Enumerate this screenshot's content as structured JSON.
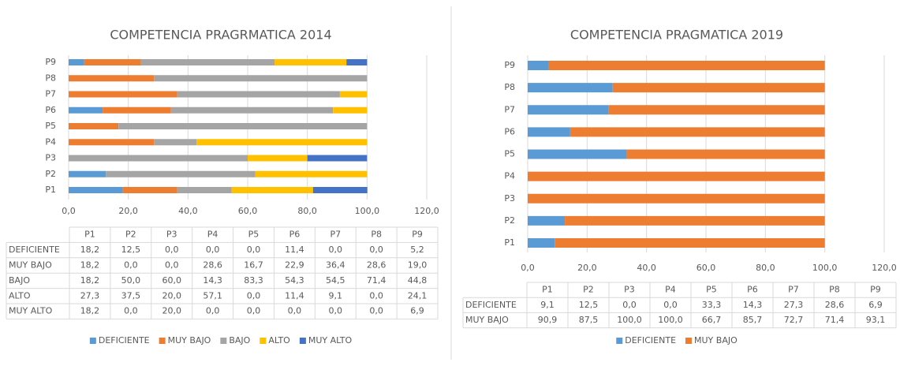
{
  "chart_data": [
    {
      "type": "bar",
      "orientation": "horizontal",
      "stacked": true,
      "title": "COMPETENCIA PRAGRMATICA 2014",
      "categories": [
        "P1",
        "P2",
        "P3",
        "P4",
        "P5",
        "P6",
        "P7",
        "P8",
        "P9"
      ],
      "xlim": [
        0,
        120
      ],
      "xticks": [
        {
          "value": 0,
          "label": "0,0"
        },
        {
          "value": 20,
          "label": "20,0"
        },
        {
          "value": 40,
          "label": "40,0"
        },
        {
          "value": 60,
          "label": "60,0"
        },
        {
          "value": 80,
          "label": "80,0"
        },
        {
          "value": 100,
          "label": "100,0"
        },
        {
          "value": 120,
          "label": "120,0"
        }
      ],
      "grid": true,
      "legend": "bottom",
      "data_table": true,
      "series": [
        {
          "name": "DEFICIENTE",
          "color": "#5b9bd5",
          "values": [
            18.2,
            12.5,
            0,
            0,
            0,
            11.4,
            0,
            0,
            5.2
          ],
          "value_labels": [
            "18,2",
            "12,5",
            "0,0",
            "0,0",
            "0,0",
            "11,4",
            "0,0",
            "0,0",
            "5,2"
          ]
        },
        {
          "name": "MUY BAJO",
          "color": "#ed7d31",
          "values": [
            18.2,
            0,
            0,
            28.6,
            16.7,
            22.9,
            36.4,
            28.6,
            19.0
          ],
          "value_labels": [
            "18,2",
            "0,0",
            "0,0",
            "28,6",
            "16,7",
            "22,9",
            "36,4",
            "28,6",
            "19,0"
          ]
        },
        {
          "name": "BAJO",
          "color": "#a5a5a5",
          "values": [
            18.2,
            50.0,
            60.0,
            14.3,
            83.3,
            54.3,
            54.5,
            71.4,
            44.8
          ],
          "value_labels": [
            "18,2",
            "50,0",
            "60,0",
            "14,3",
            "83,3",
            "54,3",
            "54,5",
            "71,4",
            "44,8"
          ]
        },
        {
          "name": "ALTO",
          "color": "#ffc000",
          "values": [
            27.3,
            37.5,
            20.0,
            57.1,
            0,
            11.4,
            9.1,
            0,
            24.1
          ],
          "value_labels": [
            "27,3",
            "37,5",
            "20,0",
            "57,1",
            "0,0",
            "11,4",
            "9,1",
            "0,0",
            "24,1"
          ]
        },
        {
          "name": "MUY ALTO",
          "color": "#4472c4",
          "values": [
            18.2,
            0,
            20.0,
            0,
            0,
            0,
            0,
            0,
            6.9
          ],
          "value_labels": [
            "18,2",
            "0,0",
            "20,0",
            "0,0",
            "0,0",
            "0,0",
            "0,0",
            "0,0",
            "6,9"
          ]
        }
      ]
    },
    {
      "type": "bar",
      "orientation": "horizontal",
      "stacked": true,
      "title": "COMPETENCIA PRAGMATICA 2019",
      "categories": [
        "P1",
        "P2",
        "P3",
        "P4",
        "P5",
        "P6",
        "P7",
        "P8",
        "P9"
      ],
      "xlim": [
        0,
        120
      ],
      "xticks": [
        {
          "value": 0,
          "label": "0,0"
        },
        {
          "value": 20,
          "label": "20,0"
        },
        {
          "value": 40,
          "label": "40,0"
        },
        {
          "value": 60,
          "label": "60,0"
        },
        {
          "value": 80,
          "label": "80,0"
        },
        {
          "value": 100,
          "label": "100,0"
        },
        {
          "value": 120,
          "label": "120,0"
        }
      ],
      "grid": true,
      "legend": "bottom",
      "data_table": true,
      "series": [
        {
          "name": "DEFICIENTE",
          "color": "#5b9bd5",
          "values": [
            9.1,
            12.5,
            0,
            0,
            33.3,
            14.3,
            27.3,
            28.6,
            6.9
          ],
          "value_labels": [
            "9,1",
            "12,5",
            "0,0",
            "0,0",
            "33,3",
            "14,3",
            "27,3",
            "28,6",
            "6,9"
          ]
        },
        {
          "name": "MUY BAJO",
          "color": "#ed7d31",
          "values": [
            90.9,
            87.5,
            100.0,
            100.0,
            66.7,
            85.7,
            72.7,
            71.4,
            93.1
          ],
          "value_labels": [
            "90,9",
            "87,5",
            "100,0",
            "100,0",
            "66,7",
            "85,7",
            "72,7",
            "71,4",
            "93,1"
          ]
        }
      ]
    }
  ]
}
